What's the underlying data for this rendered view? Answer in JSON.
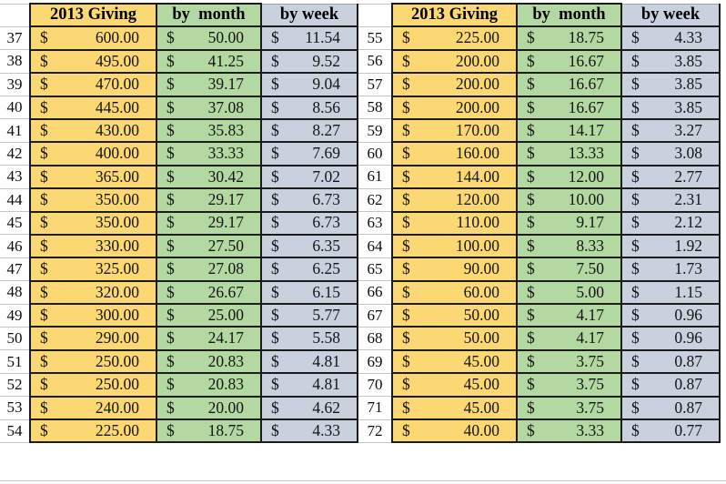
{
  "currency_symbol": "$",
  "header": {
    "giving": "2013 Giving",
    "by_month": "by  month",
    "by_week": "by week"
  },
  "colors": {
    "giving_fill": "#fbd873",
    "month_fill": "#b4d8a1",
    "week_fill": "#c9d1de",
    "cell_border": "#1c1c1c",
    "sheet_gridline": "#c6c6c6"
  },
  "tables": [
    {
      "id": "left",
      "rows": [
        {
          "row": "37",
          "giving": "600.00",
          "by_month": "50.00",
          "by_week": "11.54"
        },
        {
          "row": "38",
          "giving": "495.00",
          "by_month": "41.25",
          "by_week": "9.52"
        },
        {
          "row": "39",
          "giving": "470.00",
          "by_month": "39.17",
          "by_week": "9.04"
        },
        {
          "row": "40",
          "giving": "445.00",
          "by_month": "37.08",
          "by_week": "8.56"
        },
        {
          "row": "41",
          "giving": "430.00",
          "by_month": "35.83",
          "by_week": "8.27"
        },
        {
          "row": "42",
          "giving": "400.00",
          "by_month": "33.33",
          "by_week": "7.69"
        },
        {
          "row": "43",
          "giving": "365.00",
          "by_month": "30.42",
          "by_week": "7.02"
        },
        {
          "row": "44",
          "giving": "350.00",
          "by_month": "29.17",
          "by_week": "6.73"
        },
        {
          "row": "45",
          "giving": "350.00",
          "by_month": "29.17",
          "by_week": "6.73"
        },
        {
          "row": "46",
          "giving": "330.00",
          "by_month": "27.50",
          "by_week": "6.35"
        },
        {
          "row": "47",
          "giving": "325.00",
          "by_month": "27.08",
          "by_week": "6.25"
        },
        {
          "row": "48",
          "giving": "320.00",
          "by_month": "26.67",
          "by_week": "6.15"
        },
        {
          "row": "49",
          "giving": "300.00",
          "by_month": "25.00",
          "by_week": "5.77"
        },
        {
          "row": "50",
          "giving": "290.00",
          "by_month": "24.17",
          "by_week": "5.58"
        },
        {
          "row": "51",
          "giving": "250.00",
          "by_month": "20.83",
          "by_week": "4.81"
        },
        {
          "row": "52",
          "giving": "250.00",
          "by_month": "20.83",
          "by_week": "4.81"
        },
        {
          "row": "53",
          "giving": "240.00",
          "by_month": "20.00",
          "by_week": "4.62"
        },
        {
          "row": "54",
          "giving": "225.00",
          "by_month": "18.75",
          "by_week": "4.33"
        }
      ]
    },
    {
      "id": "right",
      "rows": [
        {
          "row": "55",
          "giving": "225.00",
          "by_month": "18.75",
          "by_week": "4.33"
        },
        {
          "row": "56",
          "giving": "200.00",
          "by_month": "16.67",
          "by_week": "3.85"
        },
        {
          "row": "57",
          "giving": "200.00",
          "by_month": "16.67",
          "by_week": "3.85"
        },
        {
          "row": "58",
          "giving": "200.00",
          "by_month": "16.67",
          "by_week": "3.85"
        },
        {
          "row": "59",
          "giving": "170.00",
          "by_month": "14.17",
          "by_week": "3.27"
        },
        {
          "row": "60",
          "giving": "160.00",
          "by_month": "13.33",
          "by_week": "3.08"
        },
        {
          "row": "61",
          "giving": "144.00",
          "by_month": "12.00",
          "by_week": "2.77"
        },
        {
          "row": "62",
          "giving": "120.00",
          "by_month": "10.00",
          "by_week": "2.31"
        },
        {
          "row": "63",
          "giving": "110.00",
          "by_month": "9.17",
          "by_week": "2.12"
        },
        {
          "row": "64",
          "giving": "100.00",
          "by_month": "8.33",
          "by_week": "1.92"
        },
        {
          "row": "65",
          "giving": "90.00",
          "by_month": "7.50",
          "by_week": "1.73"
        },
        {
          "row": "66",
          "giving": "60.00",
          "by_month": "5.00",
          "by_week": "1.15"
        },
        {
          "row": "67",
          "giving": "50.00",
          "by_month": "4.17",
          "by_week": "0.96"
        },
        {
          "row": "68",
          "giving": "50.00",
          "by_month": "4.17",
          "by_week": "0.96"
        },
        {
          "row": "69",
          "giving": "45.00",
          "by_month": "3.75",
          "by_week": "0.87"
        },
        {
          "row": "70",
          "giving": "45.00",
          "by_month": "3.75",
          "by_week": "0.87"
        },
        {
          "row": "71",
          "giving": "45.00",
          "by_month": "3.75",
          "by_week": "0.87"
        },
        {
          "row": "72",
          "giving": "40.00",
          "by_month": "3.33",
          "by_week": "0.77"
        }
      ]
    }
  ]
}
